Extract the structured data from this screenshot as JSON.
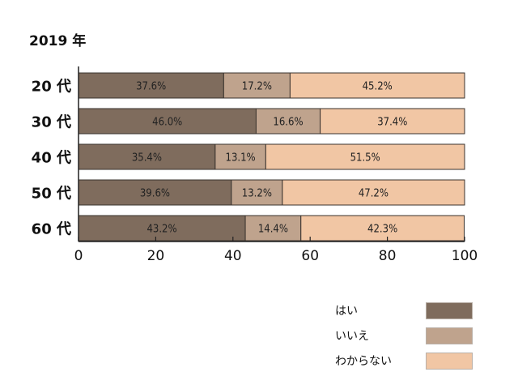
{
  "chart_data": {
    "type": "bar",
    "orientation": "horizontal",
    "stacked": true,
    "title": "2019 年",
    "categories": [
      "20 代",
      "30 代",
      "40 代",
      "50 代",
      "60 代"
    ],
    "series": [
      {
        "name": "はい",
        "color": "#7f6c5d",
        "values": [
          37.6,
          46.0,
          35.4,
          39.6,
          43.2
        ],
        "labels": [
          "37.6%",
          "46.0%",
          "35.4%",
          "39.6%",
          "43.2%"
        ]
      },
      {
        "name": "いいえ",
        "color": "#bfa38d",
        "values": [
          17.2,
          16.6,
          13.1,
          13.2,
          14.4
        ],
        "labels": [
          "17.2%",
          "16.6%",
          "13.1%",
          "13.2%",
          "14.4%"
        ]
      },
      {
        "name": "わからない",
        "color": "#f1c6a4",
        "values": [
          45.2,
          37.4,
          51.5,
          47.2,
          42.3
        ],
        "labels": [
          "45.2%",
          "37.4%",
          "51.5%",
          "47.2%",
          "42.3%"
        ]
      }
    ],
    "xlim": [
      0,
      100
    ],
    "xticks": [
      "0",
      "20",
      "40",
      "60",
      "80",
      "100"
    ],
    "grid": false,
    "legend": "bottom-right"
  }
}
